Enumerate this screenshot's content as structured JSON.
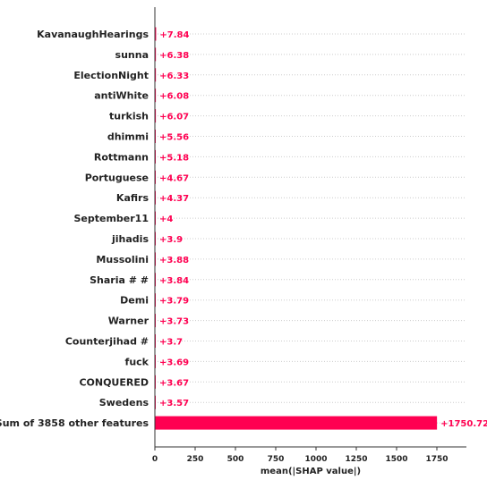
{
  "chart_data": {
    "type": "bar",
    "orientation": "horizontal",
    "xlabel": "mean(|SHAP value|)",
    "xlim": [
      0,
      1920
    ],
    "xticks": [
      "0",
      "250",
      "500",
      "750",
      "1000",
      "1250",
      "1500",
      "1750"
    ],
    "grid": "dotted row lines",
    "bar_color": "#ff0051",
    "categories": [
      "KavanaughHearings",
      "sunna",
      "ElectionNight",
      "antiWhite",
      "turkish",
      "dhimmi",
      "Rottmann",
      "Portuguese",
      "Kafirs",
      "September11",
      "jihadis",
      "Mussolini",
      "Sharia #  #",
      "Demi",
      "Warner",
      "Counterjihad #",
      "fuck",
      "CONQUERED",
      "Swedens",
      "Sum of 3858 other features"
    ],
    "values": [
      7.84,
      6.38,
      6.33,
      6.08,
      6.07,
      5.56,
      5.18,
      4.67,
      4.37,
      4,
      3.9,
      3.88,
      3.84,
      3.79,
      3.73,
      3.7,
      3.69,
      3.67,
      3.57,
      1750.72
    ],
    "value_labels": [
      "+7.84",
      "+6.38",
      "+6.33",
      "+6.08",
      "+6.07",
      "+5.56",
      "+5.18",
      "+4.67",
      "+4.37",
      "+4",
      "+3.9",
      "+3.88",
      "+3.84",
      "+3.79",
      "+3.73",
      "+3.7",
      "+3.69",
      "+3.67",
      "+3.57",
      "+1750.72"
    ]
  }
}
